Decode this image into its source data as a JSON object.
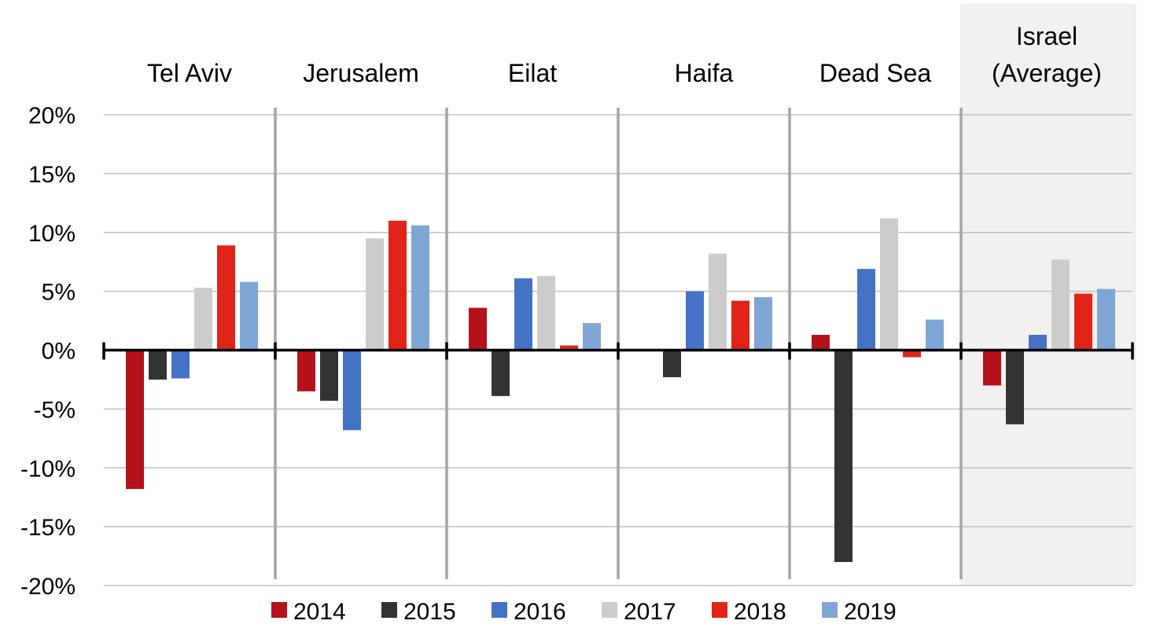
{
  "chart_data": {
    "type": "bar",
    "categories": [
      "Tel Aviv",
      "Jerusalem",
      "Eilat",
      "Haifa",
      "Dead Sea",
      "Israel (Average)"
    ],
    "category_label_lines": [
      [
        "Tel Aviv"
      ],
      [
        "Jerusalem"
      ],
      [
        "Eilat"
      ],
      [
        "Haifa"
      ],
      [
        "Dead Sea"
      ],
      [
        "Israel",
        "(Average)"
      ]
    ],
    "highlighted_category": "Israel (Average)",
    "series": [
      {
        "name": "2014",
        "color": "#B5121B",
        "values": [
          -11.8,
          -3.5,
          3.6,
          0.1,
          1.3,
          -3.0
        ]
      },
      {
        "name": "2015",
        "color": "#333333",
        "values": [
          -2.5,
          -4.3,
          -3.9,
          -2.3,
          -18.0,
          -6.3
        ]
      },
      {
        "name": "2016",
        "color": "#4472C4",
        "values": [
          -2.4,
          -6.8,
          6.1,
          5.0,
          6.9,
          1.3
        ]
      },
      {
        "name": "2017",
        "color": "#CCCCCC",
        "values": [
          5.3,
          9.5,
          6.3,
          8.2,
          11.2,
          7.7
        ]
      },
      {
        "name": "2018",
        "color": "#E02418",
        "values": [
          8.9,
          11.0,
          0.4,
          4.2,
          -0.6,
          4.8
        ]
      },
      {
        "name": "2019",
        "color": "#7FA6D4",
        "values": [
          5.8,
          10.6,
          2.3,
          4.5,
          2.6,
          5.2
        ]
      }
    ],
    "ylim": [
      -20,
      20
    ],
    "y_ticks": [
      20,
      15,
      10,
      5,
      0,
      -5,
      -10,
      -15,
      -20
    ],
    "y_tick_labels": [
      "20%",
      "15%",
      "10%",
      "5%",
      "0%",
      "-5%",
      "-10%",
      "-15%",
      "-20%"
    ],
    "grid": true,
    "legend_position": "bottom",
    "title": "",
    "xlabel": "",
    "ylabel": "",
    "colors": {
      "grid": "#BFBFBF",
      "divider": "#A6A6A6",
      "axis": "#000000",
      "highlight_bg": "#F2F1EF",
      "highlight_border": "#E6E6E6"
    }
  }
}
